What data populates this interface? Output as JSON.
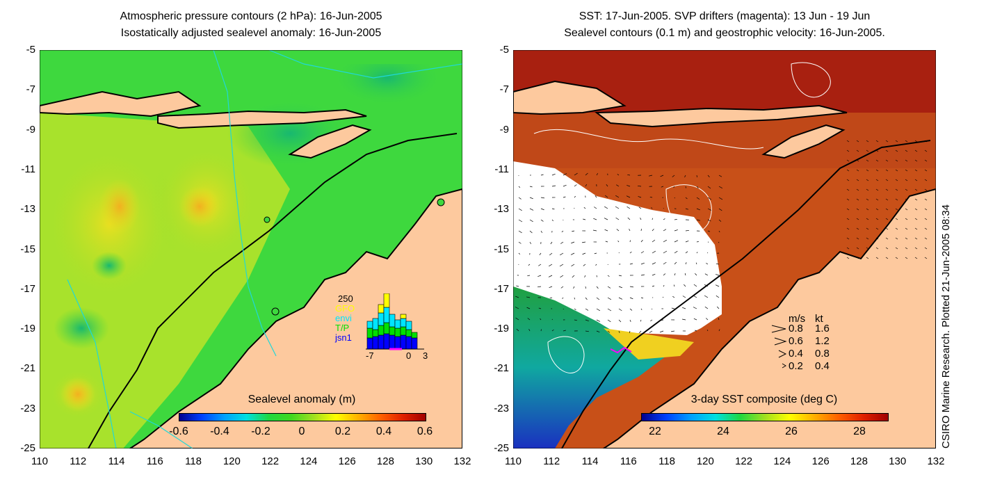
{
  "left_panel": {
    "title_line1": "Atmospheric pressure contours (2 hPa): 16-Jun-2005",
    "title_line2": "Isostatically adjusted sealevel anomaly: 16-Jun-2005",
    "colorbar": {
      "label": "Sealevel anomaly (m)",
      "ticks": [
        "-0.6",
        "-0.4",
        "-0.2",
        "0",
        "0.2",
        "0.4",
        "0.6"
      ]
    },
    "histogram": {
      "ymax_label": "250",
      "legend": [
        "GFO",
        "envi",
        "T/P",
        "jsn1"
      ],
      "legend_colors": [
        "#ffff00",
        "#00e5ff",
        "#00e000",
        "#0000ff"
      ],
      "xticks": [
        "-7",
        "0",
        "3"
      ]
    }
  },
  "right_panel": {
    "title_line1": "SST: 17-Jun-2005. SVP drifters (magenta): 13 Jun - 19 Jun",
    "title_line2": "Sealevel contours (0.1 m) and geostrophic velocity: 16-Jun-2005.",
    "colorbar": {
      "label": "3-day SST composite (deg C)",
      "ticks": [
        "22",
        "24",
        "26",
        "28"
      ]
    },
    "velocity_legend": {
      "header_ms": "m/s",
      "header_kt": "kt",
      "rows": [
        {
          "ms": "0.8",
          "kt": "1.6"
        },
        {
          "ms": "0.6",
          "kt": "1.2"
        },
        {
          "ms": "0.4",
          "kt": "0.8"
        },
        {
          "ms": "0.2",
          "kt": "0.4"
        }
      ]
    }
  },
  "axes": {
    "y_ticks": [
      "-5",
      "-7",
      "-9",
      "-11",
      "-13",
      "-15",
      "-17",
      "-19",
      "-21",
      "-23",
      "-25"
    ],
    "x_ticks": [
      "110",
      "112",
      "114",
      "116",
      "118",
      "120",
      "122",
      "124",
      "126",
      "128",
      "130",
      "132"
    ]
  },
  "side_stamp": "CSIRO Marine Research. Plotted 21-Jun-2005 08:34",
  "colors": {
    "land": "#fdc99e",
    "coastline": "#000000",
    "sea_anomaly_green": "#3ed83e",
    "sst_warm": "#b83a10",
    "sst_cold": "#1a40c8"
  }
}
